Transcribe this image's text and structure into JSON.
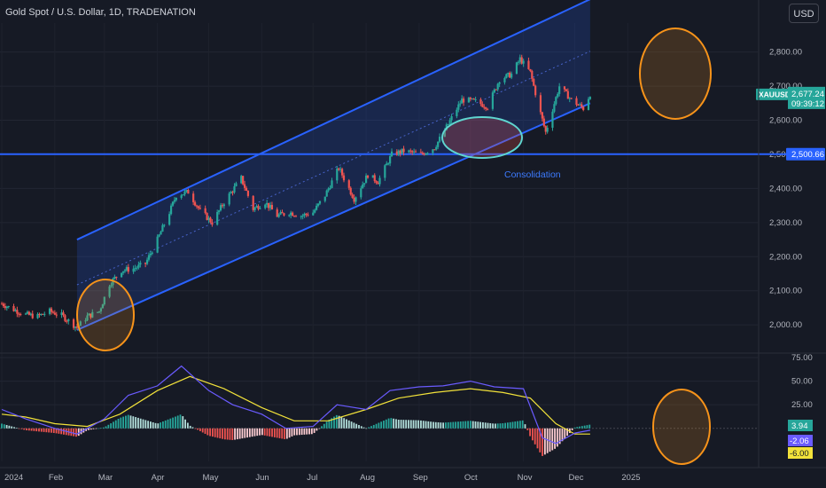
{
  "header": {
    "title": "Gold Spot / U.S. Dollar, 1D, TRADENATION",
    "currency_button": "USD"
  },
  "colors": {
    "background": "#161a25",
    "bull": "#26a69a",
    "bear": "#ef5350",
    "channel": "#2962ff",
    "macd_line": "#6a5bff",
    "signal_line": "#f2e23a",
    "circle_orange": "#f7931a",
    "circle_teal": "#5fd6d0"
  },
  "price_labels": {
    "symbol_tag": "XAUUSD",
    "last_price": "2,677.24",
    "countdown": "09:39:12",
    "level": "2,500.66"
  },
  "annotations": {
    "consolidation": "Consolidation"
  },
  "macd_labels": {
    "histogram": "3.94",
    "macd": "-2.06",
    "signal": "-6.00"
  },
  "chart_data": {
    "type": "candlestick",
    "symbol": "XAUUSD",
    "timeframe": "1D",
    "ylim": [
      1925,
      2885
    ],
    "y_ticks": [
      "2,800.00",
      "2,700.00",
      "2,600.00",
      "2,500.00",
      "2,400.00",
      "2,300.00",
      "2,200.00",
      "2,100.00",
      "2,000.00"
    ],
    "x_ticks": [
      "2024",
      "Feb",
      "Mar",
      "Apr",
      "May",
      "Jun",
      "Jul",
      "Aug",
      "Sep",
      "Oct",
      "Nov",
      "Dec",
      "2025"
    ],
    "horizontal_level": 2500.66,
    "channel": {
      "lower_start": [
        "2024-02-14",
        1985
      ],
      "lower_end": [
        "2024-12-10",
        2650
      ],
      "upper_start": [
        "2024-02-14",
        2250
      ],
      "upper_end": [
        "2024-12-10",
        2955
      ]
    },
    "close_path": [
      [
        "2024-01-01",
        2062
      ],
      [
        "2024-01-08",
        2045
      ],
      [
        "2024-01-15",
        2030
      ],
      [
        "2024-01-22",
        2025
      ],
      [
        "2024-01-29",
        2040
      ],
      [
        "2024-02-05",
        2028
      ],
      [
        "2024-02-12",
        2000
      ],
      [
        "2024-02-14",
        1992
      ],
      [
        "2024-02-20",
        2025
      ],
      [
        "2024-02-27",
        2040
      ],
      [
        "2024-03-04",
        2120
      ],
      [
        "2024-03-11",
        2160
      ],
      [
        "2024-03-18",
        2165
      ],
      [
        "2024-03-25",
        2180
      ],
      [
        "2024-04-01",
        2250
      ],
      [
        "2024-04-08",
        2330
      ],
      [
        "2024-04-12",
        2380
      ],
      [
        "2024-04-19",
        2390
      ],
      [
        "2024-04-26",
        2335
      ],
      [
        "2024-05-03",
        2300
      ],
      [
        "2024-05-10",
        2360
      ],
      [
        "2024-05-20",
        2430
      ],
      [
        "2024-05-27",
        2340
      ],
      [
        "2024-06-03",
        2360
      ],
      [
        "2024-06-10",
        2320
      ],
      [
        "2024-06-17",
        2330
      ],
      [
        "2024-06-24",
        2320
      ],
      [
        "2024-07-01",
        2330
      ],
      [
        "2024-07-08",
        2380
      ],
      [
        "2024-07-16",
        2460
      ],
      [
        "2024-07-25",
        2370
      ],
      [
        "2024-08-02",
        2440
      ],
      [
        "2024-08-08",
        2420
      ],
      [
        "2024-08-16",
        2500
      ],
      [
        "2024-08-23",
        2510
      ],
      [
        "2024-09-02",
        2500
      ],
      [
        "2024-09-10",
        2520
      ],
      [
        "2024-09-17",
        2580
      ],
      [
        "2024-09-26",
        2660
      ],
      [
        "2024-10-04",
        2655
      ],
      [
        "2024-10-11",
        2640
      ],
      [
        "2024-10-18",
        2720
      ],
      [
        "2024-10-25",
        2735
      ],
      [
        "2024-10-30",
        2780
      ],
      [
        "2024-11-05",
        2740
      ],
      [
        "2024-11-11",
        2620
      ],
      [
        "2024-11-14",
        2565
      ],
      [
        "2024-11-22",
        2700
      ],
      [
        "2024-11-29",
        2660
      ],
      [
        "2024-12-06",
        2635
      ],
      [
        "2024-12-10",
        2677
      ]
    ],
    "macd": {
      "ylim": [
        -35,
        75
      ],
      "y_ticks": [
        "75.00",
        "50.00",
        "25.00"
      ],
      "macd_line": [
        [
          "2024-01-01",
          20
        ],
        [
          "2024-01-15",
          10
        ],
        [
          "2024-02-01",
          0
        ],
        [
          "2024-02-14",
          -6
        ],
        [
          "2024-03-01",
          10
        ],
        [
          "2024-03-15",
          35
        ],
        [
          "2024-04-01",
          45
        ],
        [
          "2024-04-15",
          66
        ],
        [
          "2024-05-01",
          40
        ],
        [
          "2024-05-15",
          25
        ],
        [
          "2024-06-01",
          15
        ],
        [
          "2024-06-15",
          0
        ],
        [
          "2024-07-01",
          2
        ],
        [
          "2024-07-15",
          25
        ],
        [
          "2024-08-01",
          20
        ],
        [
          "2024-08-15",
          40
        ],
        [
          "2024-09-01",
          44
        ],
        [
          "2024-09-15",
          45
        ],
        [
          "2024-10-01",
          50
        ],
        [
          "2024-10-15",
          44
        ],
        [
          "2024-11-01",
          42
        ],
        [
          "2024-11-12",
          -10
        ],
        [
          "2024-11-20",
          -16
        ],
        [
          "2024-12-01",
          -5
        ],
        [
          "2024-12-10",
          -2
        ]
      ],
      "signal_line": [
        [
          "2024-01-01",
          15
        ],
        [
          "2024-01-15",
          12
        ],
        [
          "2024-02-01",
          5
        ],
        [
          "2024-02-20",
          2
        ],
        [
          "2024-03-10",
          15
        ],
        [
          "2024-04-01",
          40
        ],
        [
          "2024-04-20",
          55
        ],
        [
          "2024-05-10",
          42
        ],
        [
          "2024-06-01",
          22
        ],
        [
          "2024-06-20",
          8
        ],
        [
          "2024-07-10",
          8
        ],
        [
          "2024-08-01",
          20
        ],
        [
          "2024-08-20",
          32
        ],
        [
          "2024-09-10",
          38
        ],
        [
          "2024-10-01",
          42
        ],
        [
          "2024-10-20",
          38
        ],
        [
          "2024-11-05",
          32
        ],
        [
          "2024-11-20",
          5
        ],
        [
          "2024-12-01",
          -6
        ],
        [
          "2024-12-10",
          -6
        ]
      ]
    }
  }
}
